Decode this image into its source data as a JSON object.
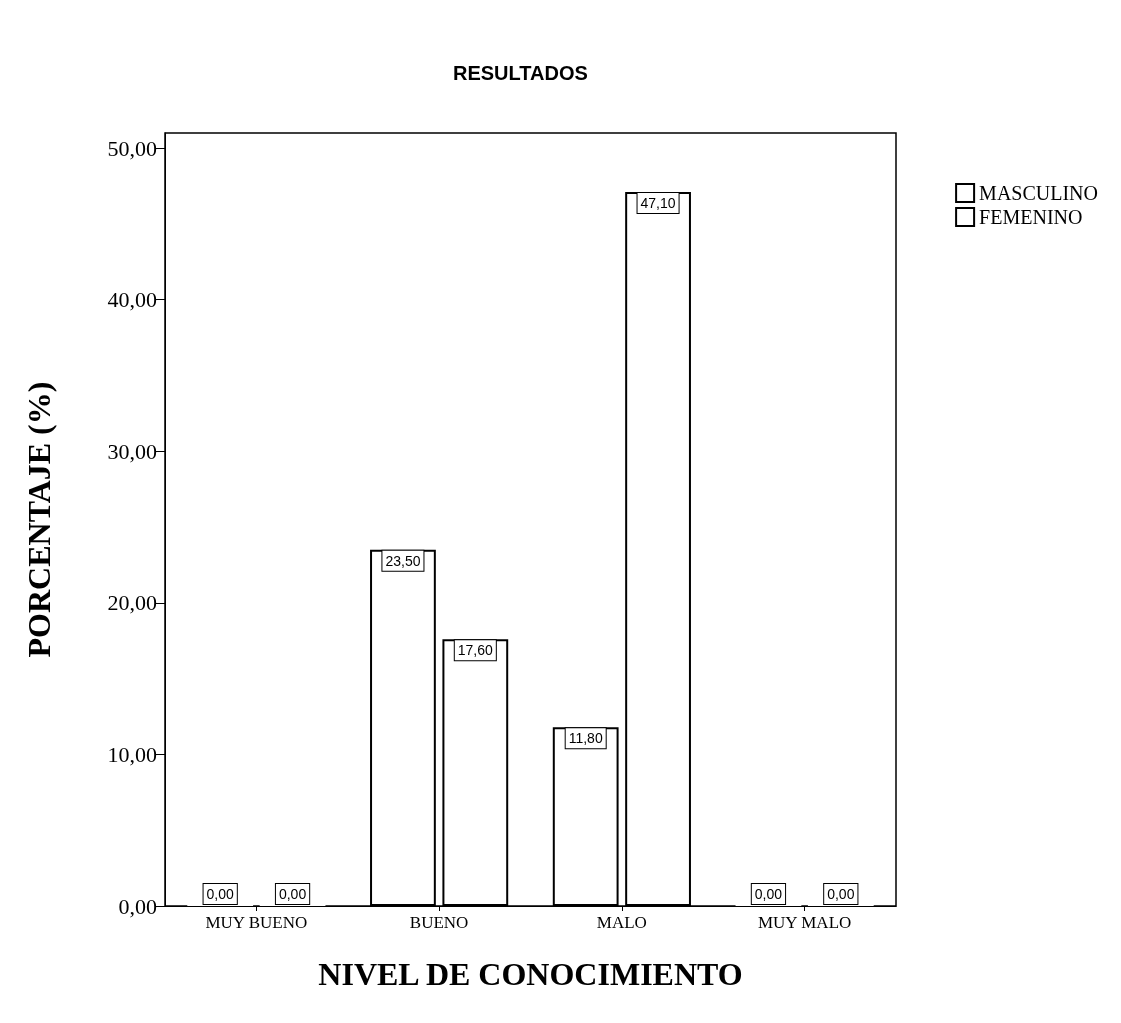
{
  "chart_data": {
    "type": "bar",
    "title": "RESULTADOS",
    "xlabel": "NIVEL DE CONOCIMIENTO",
    "ylabel": "PORCENTAJE (%)",
    "categories": [
      "MUY BUENO",
      "BUENO",
      "MALO",
      "MUY MALO"
    ],
    "series": [
      {
        "name": "MASCULINO",
        "color": "#ffffff",
        "values": [
          0,
          23.5,
          11.8,
          0
        ],
        "value_labels": [
          "0,00",
          "23,50",
          "11,80",
          "0,00"
        ]
      },
      {
        "name": "FEMENINO",
        "color": "#ffffff",
        "values": [
          0,
          17.6,
          47.1,
          0
        ],
        "value_labels": [
          "0,00",
          "17,60",
          "47,10",
          "0,00"
        ]
      }
    ],
    "ylim": [
      0,
      51
    ],
    "yticks": [
      {
        "value": 0,
        "label": "0,00"
      },
      {
        "value": 10,
        "label": "10,00"
      },
      {
        "value": 20,
        "label": "20,00"
      },
      {
        "value": 30,
        "label": "30,00"
      },
      {
        "value": 40,
        "label": "40,00"
      },
      {
        "value": 50,
        "label": "50,00"
      }
    ],
    "grid": false,
    "legend": "top right"
  }
}
